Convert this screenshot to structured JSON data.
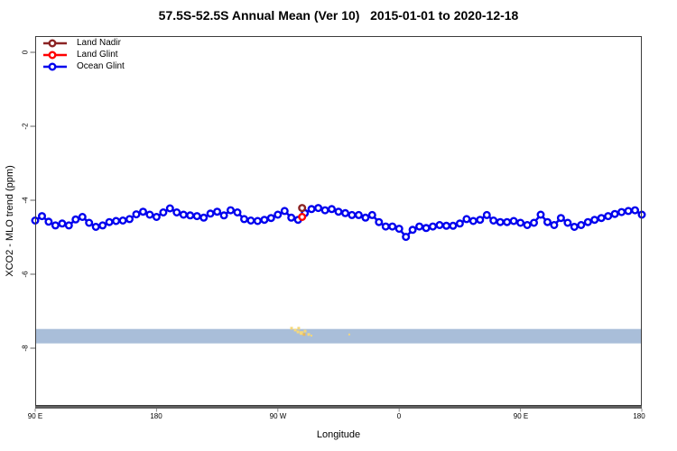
{
  "legend": {
    "items": [
      {
        "label": "Land Nadir",
        "color": "#8B2323"
      },
      {
        "label": "Land Glint",
        "color": "#FF0000"
      },
      {
        "label": "Ocean Glint",
        "color": "#0000EE"
      }
    ]
  },
  "chart_data": {
    "type": "line",
    "title": "57.5S-52.5S Annual Mean (Ver 10)   2015-01-01 to 2020-12-18",
    "xlabel": "Longitude",
    "ylabel": "XCO2 - MLO trend (ppm)",
    "legend_position": "top-left",
    "grid": false,
    "x_axis_note": "axis spans 450 deg of longitude starting at 90E wrapping east to 180",
    "x_range_deg": [
      0,
      450
    ],
    "ylim": [
      -9.5,
      0.45
    ],
    "x_ticks": [
      {
        "deg": 0,
        "label": "90 E"
      },
      {
        "deg": 90,
        "label": "180"
      },
      {
        "deg": 180,
        "label": "90 W"
      },
      {
        "deg": 270,
        "label": "0"
      },
      {
        "deg": 360,
        "label": "90 E"
      },
      {
        "deg": 450,
        "label": "180"
      }
    ],
    "y_ticks": [
      {
        "value": 0,
        "label": "0"
      },
      {
        "value": -2,
        "label": "-2"
      },
      {
        "value": -4,
        "label": "-4"
      },
      {
        "value": -6,
        "label": "-6"
      },
      {
        "value": -8,
        "label": "-8"
      }
    ],
    "series": [
      {
        "name": "Land Nadir",
        "color": "#8B2323",
        "points": [
          {
            "deg": 198,
            "value": -4.21
          }
        ]
      },
      {
        "name": "Land Glint",
        "color": "#FF0000",
        "points": [
          {
            "deg": 198,
            "value": -4.45
          }
        ]
      },
      {
        "name": "Ocean Glint",
        "color": "#0000EE",
        "deg_start": 0,
        "deg_step": 5,
        "values": [
          -4.55,
          -4.43,
          -4.58,
          -4.68,
          -4.63,
          -4.68,
          -4.52,
          -4.45,
          -4.61,
          -4.72,
          -4.68,
          -4.59,
          -4.56,
          -4.55,
          -4.51,
          -4.38,
          -4.31,
          -4.39,
          -4.45,
          -4.33,
          -4.22,
          -4.33,
          -4.39,
          -4.41,
          -4.43,
          -4.47,
          -4.36,
          -4.31,
          -4.41,
          -4.27,
          -4.33,
          -4.51,
          -4.55,
          -4.56,
          -4.53,
          -4.48,
          -4.39,
          -4.29,
          -4.47,
          -4.53,
          -4.35,
          -4.24,
          -4.21,
          -4.27,
          -4.24,
          -4.31,
          -4.35,
          -4.4,
          -4.4,
          -4.47,
          -4.4,
          -4.59,
          -4.71,
          -4.71,
          -4.77,
          -4.99,
          -4.8,
          -4.71,
          -4.75,
          -4.71,
          -4.67,
          -4.69,
          -4.69,
          -4.63,
          -4.51,
          -4.56,
          -4.53,
          -4.4,
          -4.55,
          -4.59,
          -4.59,
          -4.56,
          -4.61,
          -4.67,
          -4.61,
          -4.39,
          -4.59,
          -4.67,
          -4.48,
          -4.61,
          -4.72,
          -4.67,
          -4.59,
          -4.53,
          -4.48,
          -4.43,
          -4.37,
          -4.32,
          -4.29,
          -4.27,
          -4.39
        ]
      }
    ],
    "band": {
      "value_min": -7.87,
      "value_max": -7.48,
      "color": "#A9BED9"
    },
    "specks": {
      "color": "#F5D87A",
      "points": [
        {
          "deg": 190.2,
          "value": -7.46,
          "size": 3
        },
        {
          "deg": 192.9,
          "value": -7.51,
          "size": 3
        },
        {
          "deg": 195.5,
          "value": -7.46,
          "size": 3
        },
        {
          "deg": 194.9,
          "value": -7.56,
          "size": 3
        },
        {
          "deg": 197.5,
          "value": -7.59,
          "size": 4
        },
        {
          "deg": 200.2,
          "value": -7.54,
          "size": 3
        },
        {
          "deg": 199.5,
          "value": -7.63,
          "size": 3,
          "color": "#E8B85C"
        },
        {
          "deg": 202.9,
          "value": -7.63,
          "size": 3
        },
        {
          "deg": 204.9,
          "value": -7.66,
          "size": 2
        },
        {
          "deg": 233.0,
          "value": -7.63,
          "size": 2
        }
      ]
    }
  }
}
